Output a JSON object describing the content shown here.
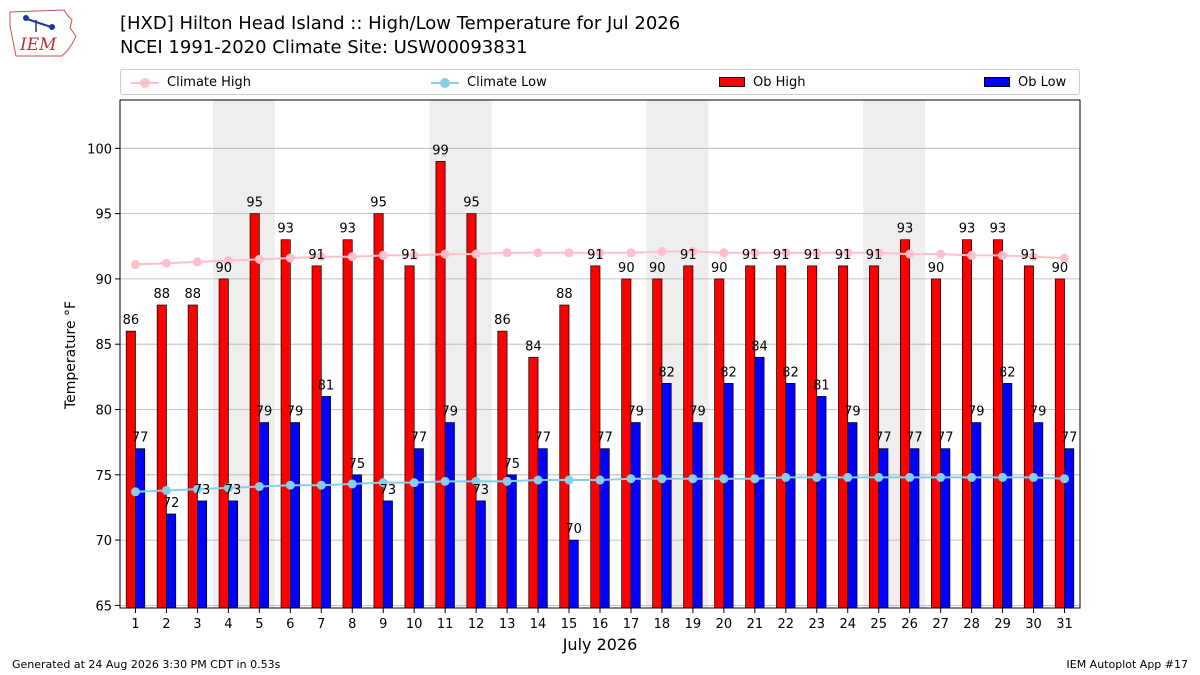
{
  "header": {
    "logo_text": "IEM",
    "title_line1": "[HXD] Hilton Head Island :: High/Low Temperature for Jul 2026",
    "title_line2": "NCEI 1991-2020 Climate Site: USW00093831"
  },
  "legend": {
    "climate_high": "Climate High",
    "climate_low": "Climate Low",
    "ob_high": "Ob High",
    "ob_low": "Ob Low"
  },
  "colors": {
    "ob_high": "#ff0000",
    "ob_low": "#0000ff",
    "climate_high": "#ffc0cb",
    "climate_low": "#87ceeb",
    "weekend_band": "#eeeeee",
    "grid": "#b0b0b0"
  },
  "chart_data": {
    "type": "bar",
    "xlabel": "July 2026",
    "ylabel": "Temperature °F",
    "ylim": [
      64.8,
      103.7
    ],
    "yticks": [
      65,
      70,
      75,
      80,
      85,
      90,
      95,
      100
    ],
    "grid": true,
    "legend_position": "top",
    "categories": [
      "1",
      "2",
      "3",
      "4",
      "5",
      "6",
      "7",
      "8",
      "9",
      "10",
      "11",
      "12",
      "13",
      "14",
      "15",
      "16",
      "17",
      "18",
      "19",
      "20",
      "21",
      "22",
      "23",
      "24",
      "25",
      "26",
      "27",
      "28",
      "29",
      "30",
      "31"
    ],
    "shaded_days": [
      4,
      5,
      11,
      12,
      18,
      19,
      25,
      26
    ],
    "series": [
      {
        "name": "Ob High",
        "kind": "bar",
        "values": [
          86,
          88,
          88,
          90,
          95,
          93,
          91,
          93,
          95,
          91,
          99,
          95,
          86,
          84,
          88,
          91,
          90,
          90,
          91,
          90,
          91,
          91,
          91,
          91,
          91,
          93,
          90,
          93,
          93,
          91,
          90
        ]
      },
      {
        "name": "Ob Low",
        "kind": "bar",
        "values": [
          77,
          72,
          73,
          73,
          79,
          79,
          81,
          75,
          73,
          77,
          79,
          73,
          75,
          77,
          70,
          77,
          79,
          82,
          79,
          82,
          84,
          82,
          81,
          79,
          77,
          77,
          77,
          79,
          82,
          79,
          77
        ]
      },
      {
        "name": "Climate High",
        "kind": "line",
        "values": [
          91.1,
          91.2,
          91.3,
          91.4,
          91.5,
          91.6,
          91.7,
          91.7,
          91.8,
          91.8,
          91.9,
          91.9,
          92.0,
          92.0,
          92.0,
          92.0,
          92.0,
          92.1,
          92.1,
          92.0,
          92.0,
          92.0,
          92.0,
          92.0,
          92.0,
          91.9,
          91.9,
          91.8,
          91.8,
          91.7,
          91.6
        ]
      },
      {
        "name": "Climate Low",
        "kind": "line",
        "values": [
          73.7,
          73.8,
          73.9,
          74.0,
          74.1,
          74.2,
          74.2,
          74.3,
          74.4,
          74.4,
          74.5,
          74.5,
          74.5,
          74.6,
          74.6,
          74.6,
          74.7,
          74.7,
          74.7,
          74.7,
          74.7,
          74.8,
          74.8,
          74.8,
          74.8,
          74.8,
          74.8,
          74.8,
          74.8,
          74.8,
          74.7
        ]
      }
    ]
  },
  "footer": {
    "generated": "Generated at 24 Aug 2026 3:30 PM CDT in 0.53s",
    "app": "IEM Autoplot App #17"
  }
}
